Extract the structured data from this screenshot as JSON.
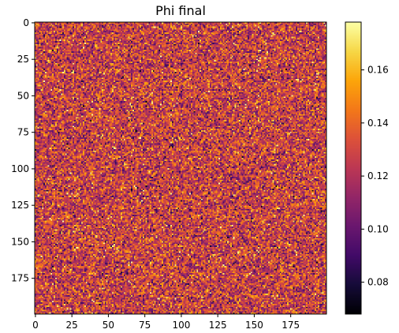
{
  "chart_data": {
    "type": "heatmap",
    "title": "Phi final",
    "xlabel": "",
    "ylabel": "",
    "rows": 200,
    "cols": 200,
    "x_ticks": [
      "0",
      "25",
      "50",
      "75",
      "100",
      "125",
      "150",
      "175"
    ],
    "y_ticks": [
      "0",
      "25",
      "50",
      "75",
      "100",
      "125",
      "150",
      "175"
    ],
    "colorbar": {
      "vmin": 0.068,
      "vmax": 0.178,
      "ticks": [
        "0.08",
        "0.10",
        "0.12",
        "0.14",
        "0.16"
      ],
      "tick_values": [
        0.08,
        0.1,
        0.12,
        0.14,
        0.16
      ]
    },
    "colormap": "inferno",
    "field_summary": {
      "mean": 0.127,
      "std": 0.018,
      "distribution": "spatially uncorrelated noise"
    },
    "grid": false
  }
}
